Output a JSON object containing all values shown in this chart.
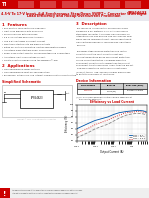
{
  "bg_color": "#f0f0f0",
  "white": "#ffffff",
  "ti_red": "#cc0000",
  "black": "#000000",
  "dark_gray": "#333333",
  "med_gray": "#666666",
  "light_gray": "#aaaaaa",
  "very_light_gray": "#dddddd",
  "header_bg": "#e8e8e8",
  "title_main": "TPS54623",
  "title_sub": "4.5-V To 17-V Input, 6-A Synchronous Step-Down SWIFT™ Converter With Light Load Efficiency and Hiccup Overcurrent Protection",
  "section1": "1  Features",
  "features": [
    "500-kHz to 1-MHz Switching Frequency",
    "Light Load Efficiency with Pulse Skip",
    "Synchronous for External Diode",
    "0.8 ± 1% Voltage Reference Accuracy",
    "Low 6-μA Shutdown Quiescent Current",
    "Monotonic Start-Up Into Pre-biased Outputs",
    "Rated for -40 to 85 Operating Junction Temperature Range",
    "Adjustable Slow Start and Power Sequencing",
    "Power-Good Output Monitor for Undervoltage and Overvoltage",
    "Adjustable Input Undervoltage Lockout",
    "Create a Custom Design Using the Webench® Tool"
  ],
  "section2": "2  Applications",
  "applications": [
    "High-Performance Power Systems",
    "High-Performance Point-of-Load Regulation",
    "Broadband, Networking, and Internet Communication Infrastructure"
  ],
  "section3": "3  Description",
  "description_lines": [
    "The TPS54623 is a monolithic synchronous eQFN",
    "package is a full featured, 17-V, 6-A synchronous",
    "step-down converter. It achieves high efficiency by",
    "integrating high side and low side synchronous FETs",
    "which reduce component count, and by operating at",
    "high switching frequency, reducing size inductance",
    "required.",
    " ",
    "The power stage includes protection and control",
    "circuits to limit the short-circuit current and",
    "provide temperature-based overcurrent protection.",
    "Hiccup current protection is engaged when the",
    "overcurrent condition lasts longer than the pre-set",
    "overcurrent time threshold for longer than the pre-set",
    "TPS54623 operates in continuous current mode",
    "(CCM) at typical load, and may employ diode mode",
    "to boost the efficiency at light loads."
  ],
  "sch_title": "Simplified Schematic",
  "tbl_title": "Device Information",
  "tbl_headers": [
    "PART NUMBER",
    "PACKAGE",
    "BODY SIZE (NOM)"
  ],
  "tbl_rows": [
    [
      "TPS54623",
      "VQFN (20)",
      "3.5 mm × 3.5 mm"
    ]
  ],
  "tbl_footnote": "(1)  For all available packages, see the orderable addendum at\n      the end of the data sheet.",
  "plot_title": "Efficiency vs Load Current",
  "plot_xlabel": "Output Current (A)",
  "plot_ylabel": "Efficiency (%)",
  "plot_xlim": [
    0.001,
    6
  ],
  "plot_ylim": [
    40,
    100
  ],
  "plot_yticks": [
    40,
    50,
    60,
    70,
    80,
    90,
    100
  ],
  "curve_5v_x": [
    0.001,
    0.005,
    0.01,
    0.05,
    0.1,
    0.2,
    0.5,
    1,
    2,
    3,
    4,
    5,
    6
  ],
  "curve_5v_y": [
    60,
    70,
    74,
    80,
    84,
    87,
    89,
    90,
    91,
    90.5,
    90,
    89,
    88
  ],
  "curve_12v_x": [
    0.001,
    0.005,
    0.01,
    0.05,
    0.1,
    0.2,
    0.5,
    1,
    2,
    3,
    4,
    5,
    6
  ],
  "curve_12v_y": [
    45,
    55,
    60,
    68,
    73,
    78,
    83,
    85,
    86,
    85.5,
    85,
    84,
    83
  ],
  "curve_33v_x": [
    0.001,
    0.005,
    0.01,
    0.05,
    0.1,
    0.2,
    0.5,
    1,
    2,
    3,
    4,
    5,
    6
  ],
  "curve_33v_y": [
    52,
    62,
    67,
    75,
    79,
    83,
    87,
    88,
    89,
    88.5,
    88,
    87,
    86
  ],
  "legend_labels": [
    "VIN = 5 V",
    "VIN = 12 V",
    "VIN = 3.3 V"
  ],
  "legend_colors": [
    "#0055aa",
    "#888888",
    "#cc0000"
  ],
  "bottom_notice": "An IMPORTANT NOTICE at the end of this TI reference design addresses authorized use, intellectual property matters and other important disclaimers. PRODUCTION DATA.",
  "copyright": "Copyright © 2012, Texas Instruments Incorporated"
}
